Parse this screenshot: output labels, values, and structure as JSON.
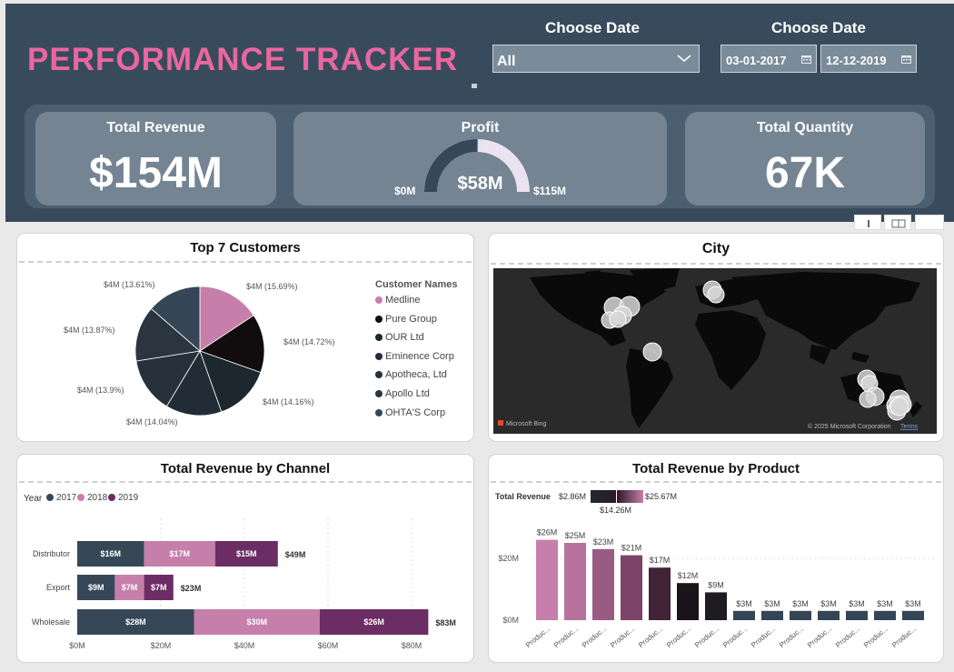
{
  "header": {
    "title": "PERFORMANCE TRACKER",
    "date_label_1": "Choose Date",
    "date_label_2": "Choose Date",
    "select_value": "All",
    "date_from": "03-01-2017",
    "date_to": "12-12-2019"
  },
  "kpis": {
    "revenue_title": "Total Revenue",
    "revenue_value": "$154M",
    "profit_title": "Profit",
    "profit_value": "$58M",
    "profit_min": "$0M",
    "profit_max": "$115M",
    "profit_fraction": 0.504,
    "quantity_title": "Total Quantity",
    "quantity_value": "67K"
  },
  "customers": {
    "title": "Top 7 Customers",
    "legend_title": "Customer Names",
    "items": [
      {
        "name": "Medline",
        "label": "$4M (15.69%)",
        "pct": 15.69,
        "color": "#c67faa"
      },
      {
        "name": "Pure Group",
        "label": "$4M (14.72%)",
        "pct": 14.72,
        "color": "#110c0e"
      },
      {
        "name": "OUR Ltd",
        "label": "$4M (14.16%)",
        "pct": 14.16,
        "color": "#1d2730"
      },
      {
        "name": "Eminence Corp",
        "label": "$4M (14.04%)",
        "pct": 14.04,
        "color": "#222c36"
      },
      {
        "name": "Apotheca, Ltd",
        "label": "$4M (13.9%)",
        "pct": 13.9,
        "color": "#27313c"
      },
      {
        "name": "Apollo Ltd",
        "label": "$4M (13.87%)",
        "pct": 13.87,
        "color": "#2b3540"
      },
      {
        "name": "OHTA'S Corp",
        "label": "$4M (13.61%)",
        "pct": 13.61,
        "color": "#354656"
      }
    ]
  },
  "city": {
    "title": "City",
    "bing": "Microsoft Bing",
    "copyright": "© 2025 Microsoft Corporation",
    "terms": "Terms"
  },
  "channel": {
    "title": "Total Revenue by Channel",
    "legend_title": "Year",
    "years": [
      {
        "name": "2017",
        "color": "#364858"
      },
      {
        "name": "2018",
        "color": "#c67faa"
      },
      {
        "name": "2019",
        "color": "#6b2d63"
      }
    ],
    "axis_ticks": [
      "$0M",
      "$20M",
      "$40M",
      "$60M",
      "$80M"
    ]
  },
  "product": {
    "title": "Total Revenue by Product",
    "gradient_title": "Total Revenue",
    "gradient_min": "$2.86M",
    "gradient_mid": "$14.26M",
    "gradient_max": "$25.67M",
    "axis_ticks": [
      "$20M",
      "$0M"
    ],
    "category_label": "Produc..."
  },
  "chart_data": [
    {
      "type": "pie",
      "title": "Top 7 Customers",
      "categories": [
        "Medline",
        "Pure Group",
        "OUR Ltd",
        "Eminence Corp",
        "Apotheca, Ltd",
        "Apollo Ltd",
        "OHTA'S Corp"
      ],
      "values": [
        15.69,
        14.72,
        14.16,
        14.04,
        13.9,
        13.87,
        13.61
      ]
    },
    {
      "type": "bar",
      "title": "Total Revenue by Channel",
      "categories": [
        "Distributor",
        "Export",
        "Wholesale"
      ],
      "series": [
        {
          "name": "2017",
          "values": [
            16,
            9,
            28
          ],
          "labels": [
            "$16M",
            "$9M",
            "$28M"
          ]
        },
        {
          "name": "2018",
          "values": [
            17,
            7,
            30
          ],
          "labels": [
            "$17M",
            "$7M",
            "$30M"
          ]
        },
        {
          "name": "2019",
          "values": [
            15,
            7,
            26
          ],
          "labels": [
            "$15M",
            "$7M",
            "$26M"
          ]
        }
      ],
      "totals": [
        "$49M",
        "$23M",
        "$83M"
      ],
      "xlim": [
        0,
        90
      ]
    },
    {
      "type": "bar",
      "title": "Total Revenue by Product",
      "values": [
        26,
        25,
        23,
        21,
        17,
        12,
        9,
        3,
        3,
        3,
        3,
        3,
        3,
        3
      ],
      "labels": [
        "$26M",
        "$25M",
        "$23M",
        "$21M",
        "$17M",
        "$12M",
        "$9M",
        "$3M",
        "$3M",
        "$3M",
        "$3M",
        "$3M",
        "$3M",
        "$3M"
      ],
      "ylim": [
        0,
        30
      ]
    }
  ]
}
